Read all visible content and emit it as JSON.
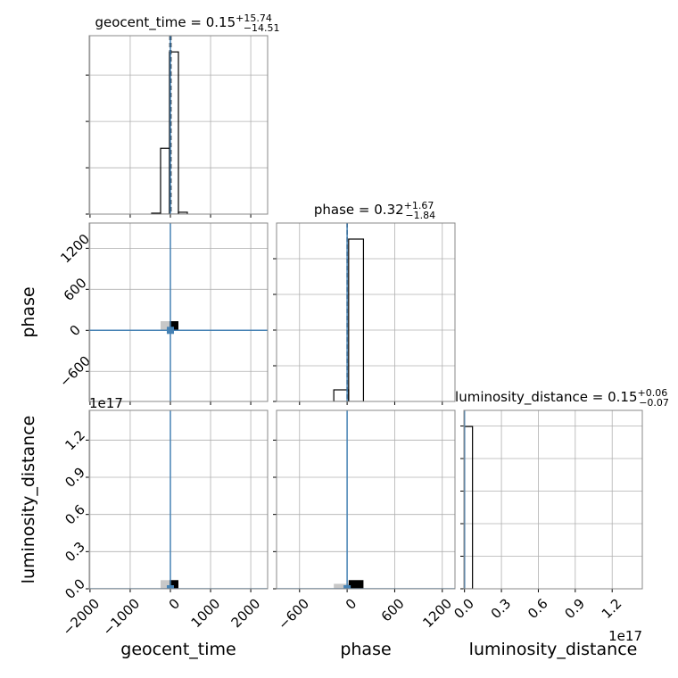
{
  "chart_data": {
    "type": "corner",
    "grid": true,
    "truth_color": "#4682b4",
    "parameters": [
      {
        "name": "geocent_time",
        "title": "geocent_time = 0.15",
        "title_sup": "+15.74",
        "title_sub": "−14.51",
        "lim": [
          -2020,
          2420
        ],
        "ticks": [
          {
            "value": -2000,
            "label": "−2000"
          },
          {
            "value": -1000,
            "label": "−1000"
          },
          0,
          1000,
          2000
        ],
        "bins": [
          -467,
          -244,
          -22,
          200,
          422
        ],
        "counts": [
          20,
          1420,
          3500,
          40
        ],
        "hist_ylim": [
          0,
          3850
        ],
        "hist_yticks": [
          0,
          1000,
          2000,
          3000
        ],
        "quantiles": [
          -14.36,
          0.15,
          15.89
        ],
        "truth": 0
      },
      {
        "name": "phase",
        "title": "phase = 0.32",
        "title_sup": "+1.67",
        "title_sub": "−1.84",
        "lim": [
          -890,
          1360
        ],
        "ticks": [
          {
            "value": -600,
            "label": "−600"
          },
          0,
          600,
          1200
        ],
        "ylim": [
          -1040,
          1570
        ],
        "bins": [
          -168,
          19,
          206
        ],
        "counts": [
          325,
          4550
        ],
        "hist_ylim": [
          0,
          5000
        ],
        "hist_yticks": [
          0,
          1000,
          2000,
          3000,
          4000
        ],
        "quantiles": [
          -1.52,
          0.32,
          1.99
        ],
        "truth": 0,
        "joint": [
          [
            {
              "x": [
                -244,
                -22
              ],
              "y": [
                4,
                134
              ],
              "color": "#c8c8c8"
            },
            {
              "x": [
                -22,
                200
              ],
              "y": [
                4,
                134
              ],
              "color": "#000000"
            }
          ]
        ]
      },
      {
        "name": "luminosity_distance",
        "title": "luminosity_distance = 0.15",
        "title_sup": "+0.06",
        "title_sub": "−0.07",
        "lim": [
          -0.005,
          1.445
        ],
        "offset_label": "1e17",
        "ticks": [
          {
            "value": 0,
            "label": "0.0"
          },
          0.3,
          0.6,
          0.9,
          1.2
        ],
        "ylim": [
          0,
          1.44
        ],
        "bins": [
          0,
          0.065
        ],
        "counts": [
          4985
        ],
        "hist_ylim": [
          0,
          5480
        ],
        "hist_yticks": [
          0,
          1000,
          2000,
          3000,
          4000,
          5000
        ],
        "truth": 0,
        "joint": [
          [
            {
              "x": [
                -244,
                -22
              ],
              "y": [
                0,
                0.07
              ],
              "color": "#c8c8c8"
            },
            {
              "x": [
                -22,
                200
              ],
              "y": [
                0,
                0.07
              ],
              "color": "#000000"
            }
          ],
          [
            {
              "x": [
                -168,
                19
              ],
              "y": [
                0,
                0.04
              ],
              "color": "#c8c8c8"
            },
            {
              "x": [
                19,
                206
              ],
              "y": [
                0,
                0.07
              ],
              "color": "#000000"
            }
          ]
        ]
      }
    ]
  }
}
